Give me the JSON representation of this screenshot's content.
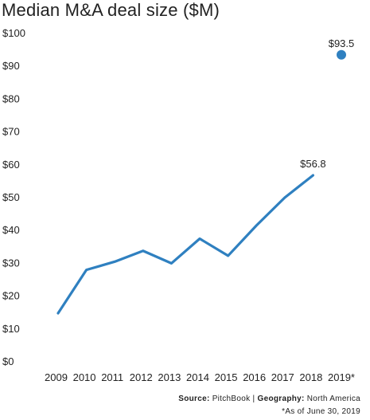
{
  "chart_data": {
    "type": "line",
    "title": "Median M&A deal size ($M)",
    "categories": [
      "2009",
      "2010",
      "2011",
      "2012",
      "2013",
      "2014",
      "2015",
      "2016",
      "2017",
      "2018",
      "2019*"
    ],
    "line_values": [
      14.8,
      28.0,
      30.5,
      33.8,
      30.0,
      37.5,
      32.3,
      41.5,
      50.0,
      56.8,
      null
    ],
    "point_value": {
      "category": "2019*",
      "value": 93.5
    },
    "data_labels": [
      {
        "category": "2018",
        "text": "$56.8"
      },
      {
        "category": "2019*",
        "text": "$93.5"
      }
    ],
    "y_ticks": [
      "$0",
      "$10",
      "$20",
      "$30",
      "$40",
      "$50",
      "$60",
      "$70",
      "$80",
      "$90",
      "$100"
    ],
    "ylim": [
      0,
      100
    ],
    "grid": false,
    "legend": "none",
    "color": "#2f80c0"
  },
  "source": {
    "source_label": "Source:",
    "source_value": "PitchBook",
    "separator": "|",
    "geo_label": "Geography:",
    "geo_value": "North America"
  },
  "note": "*As of June 30, 2019"
}
